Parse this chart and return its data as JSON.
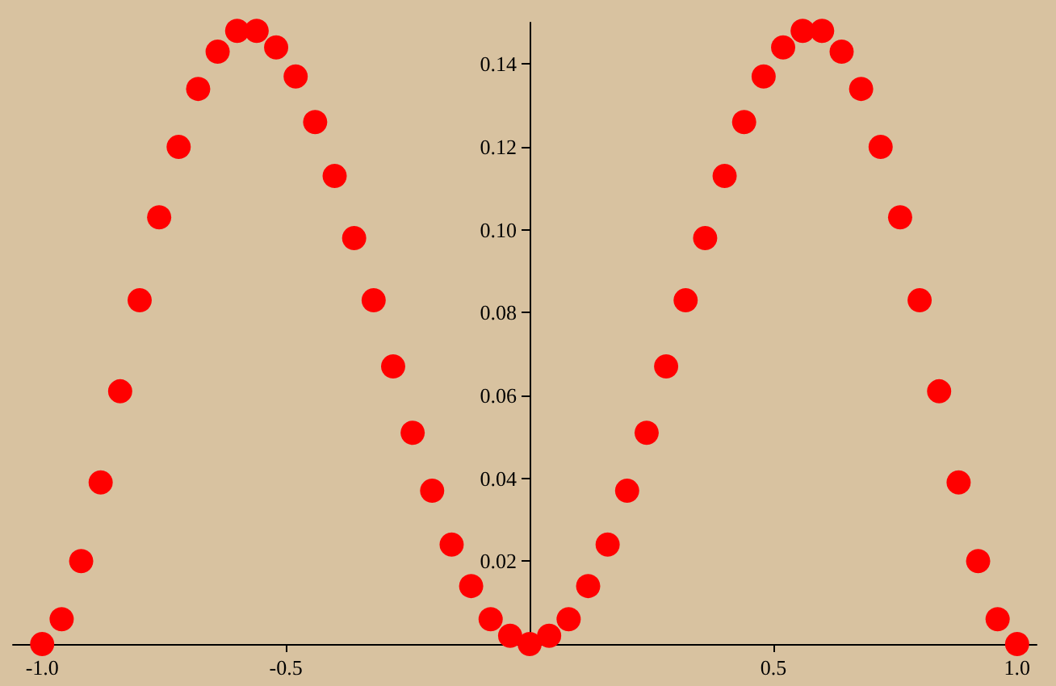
{
  "chart_data": {
    "type": "scatter",
    "x": [
      -1.0,
      -0.96,
      -0.92,
      -0.88,
      -0.84,
      -0.8,
      -0.76,
      -0.72,
      -0.68,
      -0.64,
      -0.6,
      -0.56,
      -0.52,
      -0.48,
      -0.44,
      -0.4,
      -0.36,
      -0.32,
      -0.28,
      -0.24,
      -0.2,
      -0.16,
      -0.12,
      -0.08,
      -0.04,
      0,
      0.04,
      0.08,
      0.12,
      0.16,
      0.2,
      0.24,
      0.28,
      0.32,
      0.36,
      0.4,
      0.44,
      0.48,
      0.52,
      0.56,
      0.6,
      0.64,
      0.68,
      0.72,
      0.76,
      0.8,
      0.84,
      0.88,
      0.92,
      0.96,
      1.0
    ],
    "series": [
      {
        "color": "#ff0000",
        "values": [
          0,
          0.006,
          0.02,
          0.039,
          0.061,
          0.083,
          0.103,
          0.12,
          0.134,
          0.143,
          0.148,
          0.148,
          0.144,
          0.137,
          0.126,
          0.113,
          0.098,
          0.083,
          0.067,
          0.051,
          0.037,
          0.024,
          0.014,
          0.006,
          0.002,
          0,
          0.002,
          0.006,
          0.014,
          0.024,
          0.037,
          0.051,
          0.067,
          0.083,
          0.098,
          0.113,
          0.126,
          0.137,
          0.144,
          0.148,
          0.148,
          0.143,
          0.134,
          0.12,
          0.103,
          0.083,
          0.061,
          0.039,
          0.02,
          0.006,
          0
        ]
      }
    ],
    "xlim": [
      -1.06,
      1.04
    ],
    "ylim": [
      0,
      0.15
    ],
    "xticks": [
      {
        "value": -1.0,
        "label": "-1.0"
      },
      {
        "value": -0.5,
        "label": "-0.5"
      },
      {
        "value": 0.5,
        "label": "0.5"
      },
      {
        "value": 1.0,
        "label": "1.0"
      }
    ],
    "yticks": [
      {
        "value": 0.02,
        "label": "0.02"
      },
      {
        "value": 0.04,
        "label": "0.04"
      },
      {
        "value": 0.06,
        "label": "0.06"
      },
      {
        "value": 0.08,
        "label": "0.08"
      },
      {
        "value": 0.1,
        "label": "0.10"
      },
      {
        "value": 0.12,
        "label": "0.12"
      },
      {
        "value": 0.14,
        "label": "0.14"
      }
    ],
    "grid": false,
    "marker": "circle"
  }
}
